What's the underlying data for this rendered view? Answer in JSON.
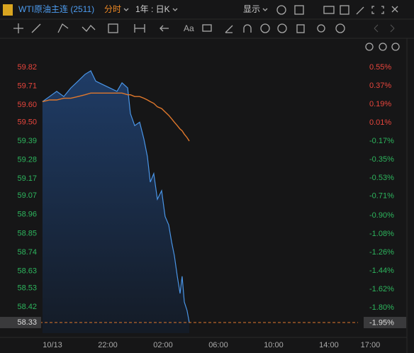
{
  "toolbar": {
    "symbol": "WTI原油主连 (2511)",
    "mode": "分时",
    "period": "1年 : 日K",
    "display": "显示",
    "text_tool": "Aa"
  },
  "chart_data": {
    "type": "line",
    "x": [
      -0.72,
      -0.21,
      0.31,
      0.82,
      1.33,
      1.85,
      2.36,
      2.77,
      3.13,
      3.64,
      4.15,
      4.67,
      5.03,
      5.44,
      5.64,
      5.95,
      6.31,
      6.62,
      6.87,
      7.08,
      7.33,
      7.59,
      7.9,
      8.15,
      8.41,
      8.62,
      8.82,
      9.03,
      9.23,
      9.38,
      9.54,
      9.74,
      9.9
    ],
    "series": [
      {
        "color": "#4a95e6",
        "values": [
          59.62,
          59.65,
          59.68,
          59.65,
          59.7,
          59.74,
          59.78,
          59.8,
          59.74,
          59.72,
          59.7,
          59.68,
          59.73,
          59.7,
          59.55,
          59.48,
          59.5,
          59.4,
          59.3,
          59.15,
          59.2,
          59.05,
          59.1,
          58.95,
          58.9,
          58.8,
          58.72,
          58.6,
          58.5,
          58.6,
          58.45,
          58.4,
          58.33
        ]
      },
      {
        "color": "#e0782c",
        "values": [
          59.62,
          59.63,
          59.63,
          59.64,
          59.64,
          59.65,
          59.66,
          59.67,
          59.67,
          59.67,
          59.67,
          59.67,
          59.67,
          59.66,
          59.66,
          59.65,
          59.65,
          59.64,
          59.63,
          59.62,
          59.61,
          59.59,
          59.58,
          59.56,
          59.54,
          59.52,
          59.5,
          59.48,
          59.46,
          59.45,
          59.43,
          59.41,
          59.39
        ]
      }
    ],
    "xlim": [
      -0.82,
      23.49
    ],
    "xticks": [
      {
        "value": 0,
        "label": "10/13"
      },
      {
        "value": 4,
        "label": "22:00"
      },
      {
        "value": 8,
        "label": "02:00"
      },
      {
        "value": 12,
        "label": "06:00"
      },
      {
        "value": 16,
        "label": "10:00"
      },
      {
        "value": 20,
        "label": "14:00"
      },
      {
        "value": 23,
        "label": "17:00"
      }
    ],
    "ylim": [
      58.268,
      59.957
    ],
    "yticks": [
      59.82,
      59.71,
      {
        "value": 59.6,
        "label": "59.60"
      },
      {
        "value": 59.5,
        "label": "59.50"
      },
      59.39,
      59.28,
      59.17,
      59.07,
      58.96,
      58.85,
      58.74,
      58.63,
      58.53,
      58.42,
      58.33
    ],
    "y2lim": [
      -2.05,
      0.78
    ],
    "y2ticks": [
      {
        "value": 0.55,
        "label": "0.55%"
      },
      {
        "value": 0.37,
        "label": "0.37%"
      },
      {
        "value": 0.19,
        "label": "0.19%"
      },
      {
        "value": 0.01,
        "label": "0.01%"
      },
      {
        "value": -0.17,
        "label": "-0.17%"
      },
      {
        "value": -0.35,
        "label": "-0.35%"
      },
      {
        "value": -0.53,
        "label": "-0.53%"
      },
      {
        "value": -0.71,
        "label": "-0.71%"
      },
      {
        "value": -0.9,
        "label": "-0.90%"
      },
      {
        "value": -1.08,
        "label": "-1.08%"
      },
      {
        "value": -1.26,
        "label": "-1.26%"
      },
      {
        "value": -1.44,
        "label": "-1.44%"
      },
      {
        "value": -1.62,
        "label": "-1.62%"
      },
      {
        "value": -1.8,
        "label": "-1.80%"
      },
      {
        "value": -1.95,
        "label": "-1.95%"
      }
    ],
    "up_color": "#e8453c",
    "down_color": "#2db55d",
    "grid": false
  }
}
